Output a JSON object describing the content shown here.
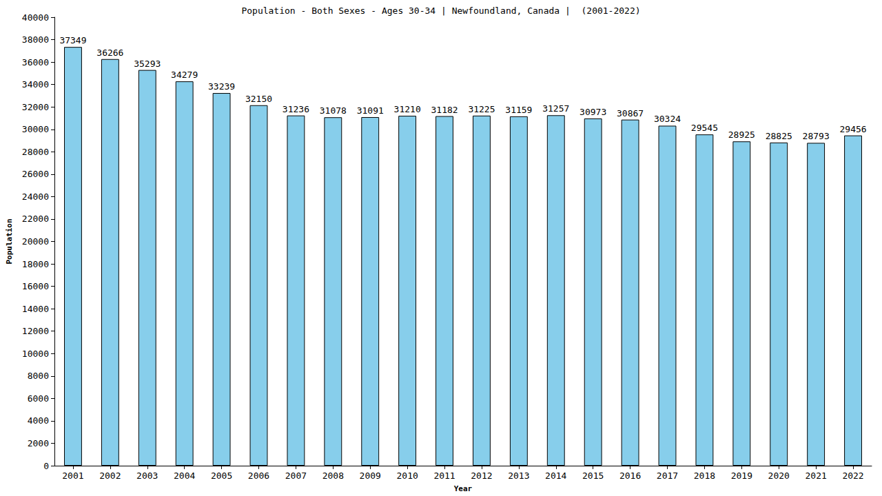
{
  "chart_data": {
    "type": "bar",
    "title": "Population - Both Sexes - Ages 30-34 | Newfoundland, Canada |  (2001-2022)",
    "x_label": "Year",
    "y_label": "Population",
    "categories": [
      "2001",
      "2002",
      "2003",
      "2004",
      "2005",
      "2006",
      "2007",
      "2008",
      "2009",
      "2010",
      "2011",
      "2012",
      "2013",
      "2014",
      "2015",
      "2016",
      "2017",
      "2018",
      "2019",
      "2020",
      "2021",
      "2022"
    ],
    "values": [
      37349,
      36266,
      35293,
      34279,
      33239,
      32150,
      31236,
      31078,
      31091,
      31210,
      31182,
      31225,
      31159,
      31257,
      30973,
      30867,
      30324,
      29545,
      28925,
      28825,
      28793,
      29456
    ],
    "color": "#87ceeb",
    "ylim": [
      0,
      40000
    ],
    "yticks": [
      0,
      2000,
      4000,
      6000,
      8000,
      10000,
      12000,
      14000,
      16000,
      18000,
      20000,
      22000,
      24000,
      26000,
      28000,
      30000,
      32000,
      34000,
      36000,
      38000,
      40000
    ],
    "grid": false,
    "data_labels": true
  }
}
